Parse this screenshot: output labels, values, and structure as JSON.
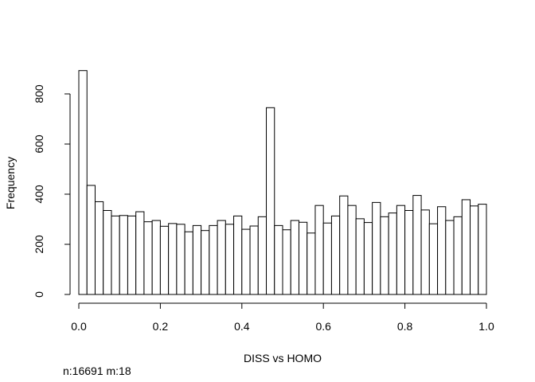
{
  "chart_data": {
    "type": "bar",
    "subtype": "histogram",
    "xlabel": "DISS vs HOMO",
    "ylabel": "Frequency",
    "xlim": [
      0,
      1
    ],
    "ylim": [
      0,
      900
    ],
    "xticks": [
      0.0,
      0.2,
      0.4,
      0.6,
      0.8,
      1.0
    ],
    "xtick_labels": [
      "0.0",
      "0.2",
      "0.4",
      "0.6",
      "0.8",
      "1.0"
    ],
    "yticks": [
      0,
      200,
      400,
      600,
      800
    ],
    "ytick_labels": [
      "0",
      "200",
      "400",
      "600",
      "800"
    ],
    "bin_width": 0.02,
    "bin_starts": [
      0.0,
      0.02,
      0.04,
      0.06,
      0.08,
      0.1,
      0.12,
      0.14,
      0.16,
      0.18,
      0.2,
      0.22,
      0.24,
      0.26,
      0.28,
      0.3,
      0.32,
      0.34,
      0.36,
      0.38,
      0.4,
      0.42,
      0.44,
      0.46,
      0.48,
      0.5,
      0.52,
      0.54,
      0.56,
      0.58,
      0.6,
      0.62,
      0.64,
      0.66,
      0.68,
      0.7,
      0.72,
      0.74,
      0.76,
      0.78,
      0.8,
      0.82,
      0.84,
      0.86,
      0.88,
      0.9,
      0.92,
      0.94,
      0.96,
      0.98
    ],
    "values": [
      893,
      435,
      370,
      335,
      313,
      315,
      313,
      330,
      290,
      295,
      272,
      283,
      280,
      250,
      275,
      255,
      275,
      295,
      280,
      313,
      260,
      273,
      310,
      745,
      275,
      258,
      295,
      288,
      245,
      355,
      285,
      313,
      393,
      355,
      302,
      287,
      367,
      310,
      325,
      355,
      335,
      395,
      337,
      282,
      350,
      295,
      310,
      378,
      353,
      360
    ],
    "grid": false,
    "legend": "none"
  },
  "caption": "n:16691 m:18"
}
